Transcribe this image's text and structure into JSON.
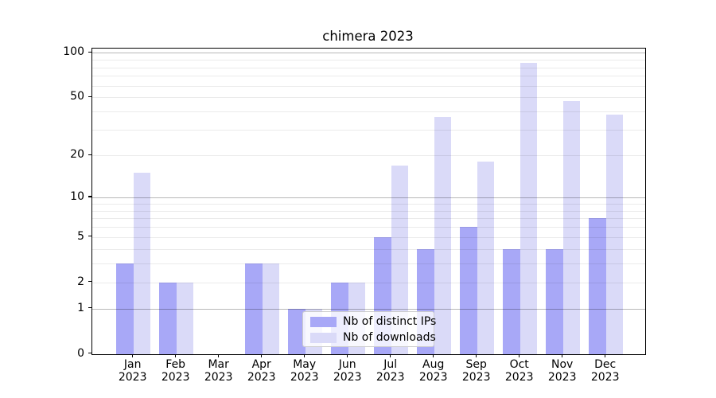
{
  "title": "chimera 2023",
  "legend": {
    "items": [
      {
        "label": "Nb of distinct IPs",
        "color": "#a8a8f7"
      },
      {
        "label": "Nb of downloads",
        "color": "#dadaf8"
      }
    ],
    "position": "lower center"
  },
  "axes": {
    "y_tick_labels": [
      "0",
      "1",
      "2",
      "5",
      "10",
      "20",
      "50",
      "100"
    ],
    "x_tick_line2": "2023"
  },
  "chart_data": {
    "type": "bar",
    "title": "chimera 2023",
    "categories": [
      "Jan 2023",
      "Feb 2023",
      "Mar 2023",
      "Apr 2023",
      "May 2023",
      "Jun 2023",
      "Jul 2023",
      "Aug 2023",
      "Sep 2023",
      "Oct 2023",
      "Nov 2023",
      "Dec 2023"
    ],
    "month_names": [
      "Jan",
      "Feb",
      "Mar",
      "Apr",
      "May",
      "Jun",
      "Jul",
      "Aug",
      "Sep",
      "Oct",
      "Nov",
      "Dec"
    ],
    "year": "2023",
    "series": [
      {
        "name": "Nb of distinct IPs",
        "color": "#a8a8f7",
        "values": [
          3,
          2,
          0,
          3,
          1,
          2,
          5,
          4,
          6,
          4,
          4,
          7
        ]
      },
      {
        "name": "Nb of downloads",
        "color": "#dadaf8",
        "values": [
          15,
          2,
          0,
          3,
          1,
          2,
          17,
          37,
          18,
          86,
          47,
          38
        ]
      }
    ],
    "xlabel": "",
    "ylabel": "",
    "yscale": "log1p",
    "y_ticks": [
      0,
      1,
      2,
      5,
      10,
      20,
      50,
      100
    ],
    "ylim": [
      0,
      108
    ],
    "grid": "horizontal; minor lines at 2-9 per decade, major lines at 1,10,100; drawn over bars",
    "legend_position": "lower center"
  }
}
